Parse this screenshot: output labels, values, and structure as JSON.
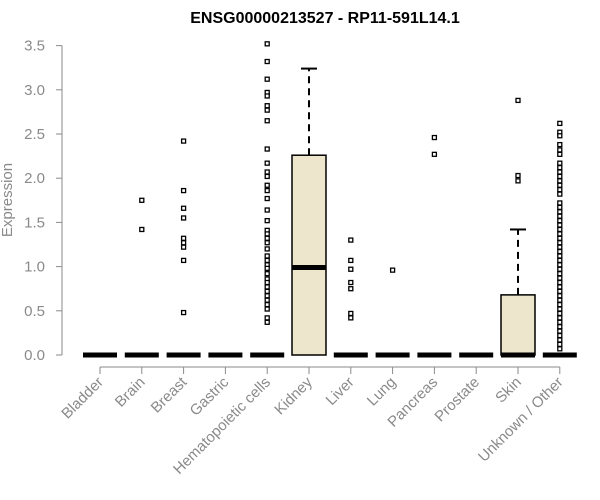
{
  "chart_data": {
    "type": "box",
    "title": "ENSG00000213527 - RP11-591L14.1",
    "xlabel": "",
    "ylabel": "Expression",
    "ylim": [
      0,
      3.55
    ],
    "yticks": [
      0.0,
      0.5,
      1.0,
      1.5,
      2.0,
      2.5,
      3.0,
      3.5
    ],
    "ytick_labels": [
      "0.0",
      "0.5",
      "1.0",
      "1.5",
      "2.0",
      "2.5",
      "3.0",
      "3.5"
    ],
    "box_fill": "#ede6cc",
    "categories": [
      "Bladder",
      "Brain",
      "Breast",
      "Gastric",
      "Hematopoietic cells",
      "Kidney",
      "Liver",
      "Lung",
      "Pancreas",
      "Prostate",
      "Skin",
      "Unknown / Other"
    ],
    "boxes": [
      {
        "q1": 0,
        "median": 0,
        "q3": 0,
        "whisker_low": 0,
        "whisker_high": 0,
        "outliers": []
      },
      {
        "q1": 0,
        "median": 0,
        "q3": 0,
        "whisker_low": 0,
        "whisker_high": 0,
        "outliers": [
          1.75,
          1.42
        ]
      },
      {
        "q1": 0,
        "median": 0,
        "q3": 0,
        "whisker_low": 0,
        "whisker_high": 0,
        "outliers": [
          2.42,
          1.86,
          1.66,
          1.55,
          1.32,
          1.27,
          1.22,
          1.07,
          0.48
        ]
      },
      {
        "q1": 0,
        "median": 0,
        "q3": 0,
        "whisker_low": 0,
        "whisker_high": 0,
        "outliers": []
      },
      {
        "q1": 0,
        "median": 0,
        "q3": 0,
        "whisker_low": 0,
        "whisker_high": 0,
        "outliers": [
          3.52,
          3.32,
          3.12,
          2.97,
          2.93,
          2.82,
          2.77,
          2.65,
          2.33,
          2.17,
          2.07,
          2.02,
          1.92,
          1.86,
          1.77,
          1.64,
          1.52,
          1.41,
          1.37,
          1.32,
          1.27,
          1.2,
          1.12,
          1.07,
          1.02,
          0.98,
          0.92,
          0.86,
          0.82,
          0.77,
          0.72,
          0.67,
          0.62,
          0.57,
          0.52,
          0.42,
          0.37
        ]
      },
      {
        "q1": 0,
        "median": 0.99,
        "q3": 2.26,
        "whisker_low": 0,
        "whisker_high": 3.24,
        "outliers": []
      },
      {
        "q1": 0,
        "median": 0,
        "q3": 0,
        "whisker_low": 0,
        "whisker_high": 0,
        "outliers": [
          1.3,
          1.07,
          0.97,
          0.82,
          0.75,
          0.47,
          0.42
        ]
      },
      {
        "q1": 0,
        "median": 0,
        "q3": 0,
        "whisker_low": 0,
        "whisker_high": 0,
        "outliers": [
          0.96
        ]
      },
      {
        "q1": 0,
        "median": 0,
        "q3": 0,
        "whisker_low": 0,
        "whisker_high": 0,
        "outliers": [
          2.46,
          2.27
        ]
      },
      {
        "q1": 0,
        "median": 0,
        "q3": 0,
        "whisker_low": 0,
        "whisker_high": 0,
        "outliers": []
      },
      {
        "q1": 0,
        "median": 0,
        "q3": 0.68,
        "whisker_low": 0,
        "whisker_high": 1.42,
        "outliers": [
          2.88,
          2.03,
          1.97
        ]
      },
      {
        "q1": 0,
        "median": 0,
        "q3": 0,
        "whisker_low": 0,
        "whisker_high": 0,
        "outliers": [
          2.62,
          2.52,
          2.48,
          2.38,
          2.32,
          2.27,
          2.17,
          2.12,
          2.07,
          2.02,
          1.97,
          1.92,
          1.87,
          1.82,
          1.72,
          1.67,
          1.62,
          1.57,
          1.52,
          1.47,
          1.42,
          1.37,
          1.32,
          1.27,
          1.22,
          1.17,
          1.12,
          1.07,
          1.02,
          0.97,
          0.92,
          0.87,
          0.82,
          0.77,
          0.72,
          0.67,
          0.62,
          0.57,
          0.52,
          0.47,
          0.42,
          0.37,
          0.32,
          0.27,
          0.22,
          0.17,
          0.12,
          0.07
        ]
      }
    ]
  }
}
